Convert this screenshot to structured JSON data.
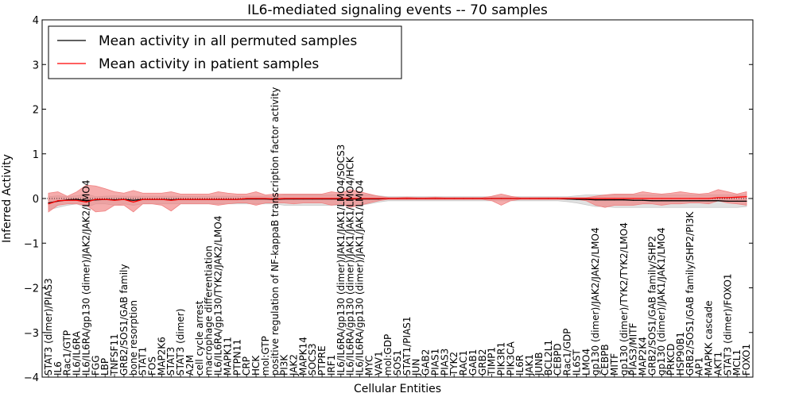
{
  "chart_data": {
    "type": "line",
    "title": "IL6-mediated signaling events -- 70 samples",
    "xlabel": "Cellular Entities",
    "ylabel": "Inferred Activity",
    "ylim": [
      -4,
      4
    ],
    "yticks": [
      -4,
      -3,
      -2,
      -1,
      0,
      1,
      2,
      3,
      4
    ],
    "legend_position": "top-left",
    "categories": [
      "STAT3 (dimer)/PIAS3",
      "IL6",
      "Rac1/GTP",
      "IL6/IL6RA",
      "IL6/IL6RA/gp130 (dimer)/JAK2/JAK2/LMO4",
      "FGG",
      "LBP",
      "TNFSF11",
      "GRB2/SOS1/GAB family",
      "bone resorption",
      "STAT1",
      "FOS",
      "MAP2K6",
      "STAT3",
      "STAT3 (dimer)",
      "A2M",
      "cell cycle arrest",
      "macrophage differentiation",
      "IL6/IL6RA/gp130/TYK2/JAK2/LMO4",
      "MAPK11",
      "PTPN11",
      "CRP",
      "HCK",
      "mol:GTP",
      "positive regulation of NF-kappaB transcription factor activity",
      "PI3K",
      "JAK2",
      "MAPK14",
      "SOCS3",
      "PTPRE",
      "IRF1",
      "IL6/IL6RA/gp130 (dimer)/JAK1/JAK1/LMO4/SOCS3",
      "IL6/IL6RA/gp130 (dimer)/JAK1/JAK1/LMO4/HCK",
      "IL6/IL6RA/gp130 (dimer)/JAK1/JAK1/LMO4",
      "MYC",
      "VAV1",
      "mol:GDP",
      "SOS1",
      "STAT1/PIAS1",
      "JUN",
      "GAB2",
      "PIAS1",
      "PIAS3",
      "TYK2",
      "RAC1",
      "GAB1",
      "GRB2",
      "TIMP1",
      "PIK3R1",
      "PIK3CA",
      "IL6R",
      "JAK1",
      "JUNB",
      "BCL2L1",
      "CEBPD",
      "Rac1/GDP",
      "IL6ST",
      "LMO4",
      "gp130 (dimer)/JAK2/JAK2/LMO4",
      "CEBPB",
      "MITF",
      "gp130 (dimer)/TYK2/TYK2/LMO4",
      "PIAS3/MITF",
      "MAP2K4",
      "GRB2/SOS1/GAB family/SHP2",
      "gp130 (dimer)/JAK1/JAK1/LMO4",
      "PRKCD",
      "HSP90B1",
      "GRB2/SOS1/GAB family/SHP2/PI3K",
      "AP1",
      "MAPKK cascade",
      "AKT1",
      "STAT3 (dimer)/FOXO1",
      "MCL1",
      "FOXO1"
    ],
    "series": [
      {
        "name": "Mean activity in all permuted samples",
        "color": "#000000",
        "band_color": "#c8c8c8",
        "values": [
          -0.1,
          -0.06,
          -0.03,
          -0.02,
          -0.05,
          -0.03,
          -0.02,
          -0.03,
          -0.02,
          -0.04,
          -0.02,
          -0.02,
          -0.02,
          -0.03,
          -0.02,
          -0.02,
          -0.02,
          -0.02,
          -0.02,
          -0.02,
          -0.02,
          -0.01,
          -0.01,
          -0.01,
          -0.02,
          -0.01,
          -0.01,
          -0.01,
          -0.01,
          -0.01,
          -0.01,
          -0.01,
          -0.01,
          -0.01,
          -0.01,
          -0.01,
          0.0,
          0.0,
          0.0,
          0.0,
          0.0,
          0.0,
          0.0,
          0.0,
          0.0,
          0.0,
          0.0,
          0.0,
          0.0,
          0.0,
          0.0,
          0.0,
          0.0,
          0.0,
          0.0,
          -0.01,
          -0.02,
          -0.02,
          -0.03,
          -0.03,
          -0.03,
          -0.03,
          -0.04,
          -0.04,
          -0.05,
          -0.05,
          -0.05,
          -0.05,
          -0.05,
          -0.05,
          -0.05,
          -0.05,
          -0.06,
          -0.06,
          -0.06
        ],
        "upper": [
          0.04,
          0.06,
          0.04,
          0.06,
          0.1,
          0.04,
          0.05,
          0.06,
          0.05,
          0.05,
          0.05,
          0.05,
          0.05,
          0.05,
          0.05,
          0.05,
          0.05,
          0.05,
          0.05,
          0.05,
          0.05,
          0.05,
          0.05,
          0.05,
          0.05,
          0.08,
          0.08,
          0.08,
          0.08,
          0.08,
          0.08,
          0.09,
          0.09,
          0.09,
          0.08,
          0.06,
          0.04,
          0.04,
          0.04,
          0.04,
          0.04,
          0.04,
          0.04,
          0.04,
          0.04,
          0.04,
          0.04,
          0.04,
          0.04,
          0.04,
          0.04,
          0.04,
          0.04,
          0.04,
          0.04,
          0.04,
          0.06,
          0.08,
          0.08,
          0.08,
          0.08,
          0.08,
          0.08,
          0.08,
          0.08,
          0.08,
          0.08,
          0.08,
          0.08,
          0.08,
          0.08,
          0.08,
          0.08,
          0.08,
          0.08
        ],
        "lower": [
          -0.25,
          -0.2,
          -0.15,
          -0.12,
          -0.2,
          -0.12,
          -0.12,
          -0.15,
          -0.12,
          -0.15,
          -0.12,
          -0.12,
          -0.12,
          -0.12,
          -0.12,
          -0.12,
          -0.12,
          -0.12,
          -0.12,
          -0.12,
          -0.12,
          -0.12,
          -0.12,
          -0.12,
          -0.12,
          -0.15,
          -0.15,
          -0.15,
          -0.15,
          -0.15,
          -0.15,
          -0.15,
          -0.15,
          -0.15,
          -0.12,
          -0.08,
          -0.05,
          -0.05,
          -0.05,
          -0.05,
          -0.05,
          -0.05,
          -0.05,
          -0.05,
          -0.05,
          -0.05,
          -0.05,
          -0.05,
          -0.05,
          -0.05,
          -0.05,
          -0.05,
          -0.05,
          -0.05,
          -0.05,
          -0.07,
          -0.1,
          -0.14,
          -0.18,
          -0.18,
          -0.2,
          -0.2,
          -0.2,
          -0.2,
          -0.2,
          -0.2,
          -0.2,
          -0.2,
          -0.2,
          -0.2,
          -0.2,
          -0.2,
          -0.2,
          -0.2,
          -0.18
        ]
      },
      {
        "name": "Mean activity in patient samples",
        "color": "#ff0000",
        "band_color": "#f08080",
        "values": [
          -0.12,
          -0.05,
          -0.04,
          -0.04,
          -0.08,
          -0.02,
          -0.02,
          -0.04,
          -0.02,
          -0.08,
          -0.02,
          -0.02,
          -0.02,
          -0.04,
          -0.02,
          -0.02,
          -0.02,
          -0.02,
          -0.02,
          -0.02,
          -0.02,
          0.0,
          0.0,
          0.0,
          -0.01,
          0.0,
          0.0,
          0.0,
          0.0,
          0.0,
          0.0,
          0.0,
          0.0,
          0.0,
          0.0,
          0.0,
          0.0,
          0.0,
          0.0,
          0.0,
          0.0,
          0.0,
          0.0,
          0.0,
          0.0,
          0.0,
          0.0,
          0.0,
          0.0,
          0.0,
          0.0,
          0.0,
          0.0,
          0.0,
          0.0,
          0.0,
          0.0,
          0.0,
          0.0,
          0.0,
          0.0,
          0.0,
          0.0,
          0.0,
          0.0,
          0.0,
          0.0,
          0.0,
          0.0,
          0.0,
          0.0,
          0.02,
          0.02,
          0.03,
          0.04
        ],
        "upper": [
          0.12,
          0.15,
          0.05,
          0.15,
          0.3,
          0.28,
          0.22,
          0.15,
          0.12,
          0.18,
          0.12,
          0.12,
          0.12,
          0.15,
          0.1,
          0.1,
          0.1,
          0.1,
          0.15,
          0.12,
          0.1,
          0.1,
          0.15,
          0.08,
          0.1,
          0.1,
          0.1,
          0.1,
          0.1,
          0.1,
          0.15,
          0.12,
          0.2,
          0.15,
          0.1,
          0.05,
          0.02,
          0.02,
          0.03,
          0.02,
          0.02,
          0.03,
          0.02,
          0.02,
          0.02,
          0.02,
          0.02,
          0.05,
          0.1,
          0.05,
          0.02,
          0.02,
          0.02,
          0.02,
          0.02,
          0.02,
          0.02,
          0.02,
          0.05,
          0.08,
          0.1,
          0.1,
          0.1,
          0.15,
          0.12,
          0.1,
          0.12,
          0.15,
          0.12,
          0.1,
          0.12,
          0.2,
          0.15,
          0.1,
          0.15
        ],
        "lower": [
          -0.3,
          -0.15,
          -0.12,
          -0.12,
          -0.15,
          -0.3,
          -0.28,
          -0.15,
          -0.15,
          -0.3,
          -0.12,
          -0.12,
          -0.15,
          -0.28,
          -0.12,
          -0.12,
          -0.12,
          -0.12,
          -0.15,
          -0.12,
          -0.1,
          -0.1,
          -0.15,
          -0.1,
          -0.1,
          -0.1,
          -0.12,
          -0.1,
          -0.1,
          -0.1,
          -0.15,
          -0.12,
          -0.2,
          -0.15,
          -0.1,
          -0.05,
          -0.02,
          -0.02,
          -0.02,
          -0.02,
          -0.02,
          -0.02,
          -0.02,
          -0.02,
          -0.02,
          -0.02,
          -0.02,
          -0.05,
          -0.15,
          -0.05,
          -0.02,
          -0.02,
          -0.02,
          -0.02,
          -0.02,
          -0.02,
          -0.02,
          -0.05,
          -0.15,
          -0.2,
          -0.15,
          -0.15,
          -0.15,
          -0.12,
          -0.12,
          -0.15,
          -0.12,
          -0.12,
          -0.1,
          -0.1,
          -0.12,
          -0.05,
          -0.1,
          -0.12,
          -0.15
        ]
      }
    ]
  }
}
